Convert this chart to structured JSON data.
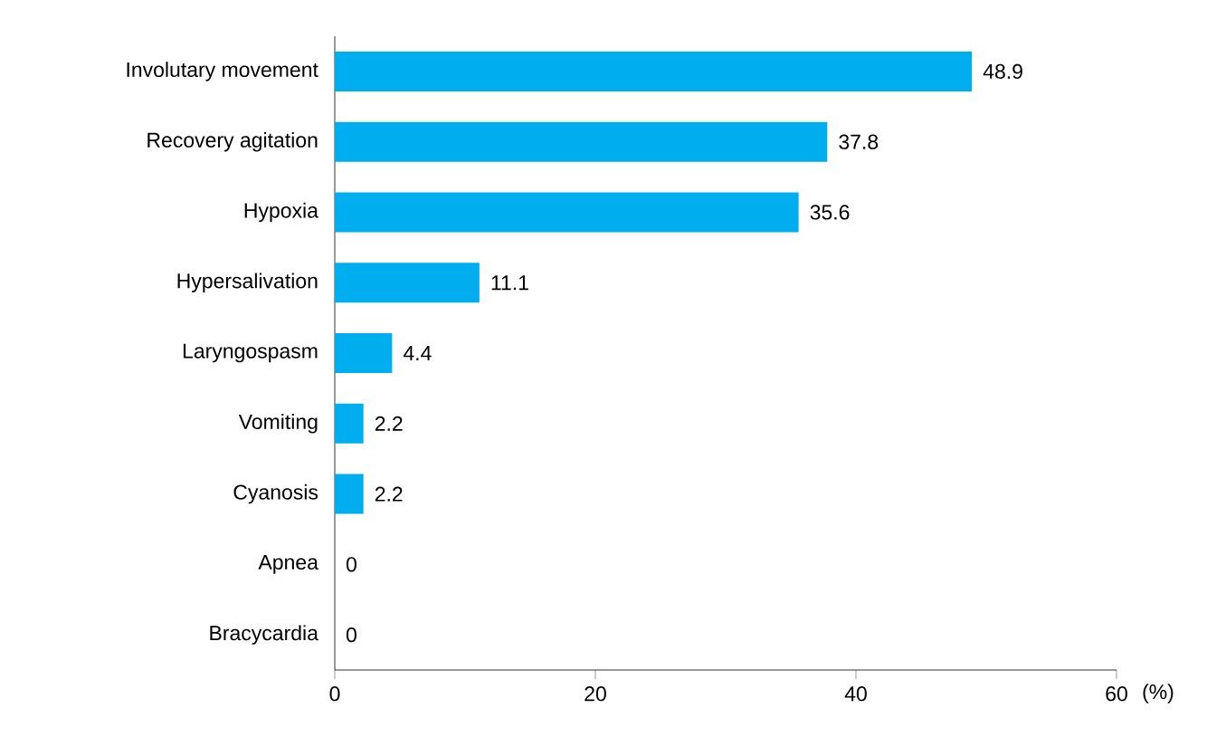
{
  "chart_data": {
    "type": "bar",
    "orientation": "horizontal",
    "xlabel": "(%)",
    "categories": [
      "Involutary movement",
      "Recovery agitation",
      "Hypoxia",
      "Hypersalivation",
      "Laryngospasm",
      "Vomiting",
      "Cyanosis",
      "Apnea",
      "Bracycardia"
    ],
    "values": [
      48.9,
      37.8,
      35.6,
      11.1,
      4.4,
      2.2,
      2.2,
      0,
      0
    ],
    "color": "#00aeef",
    "xlim": [
      0,
      60
    ],
    "xticks": [
      0,
      20,
      40,
      60
    ],
    "data_labels": true
  }
}
